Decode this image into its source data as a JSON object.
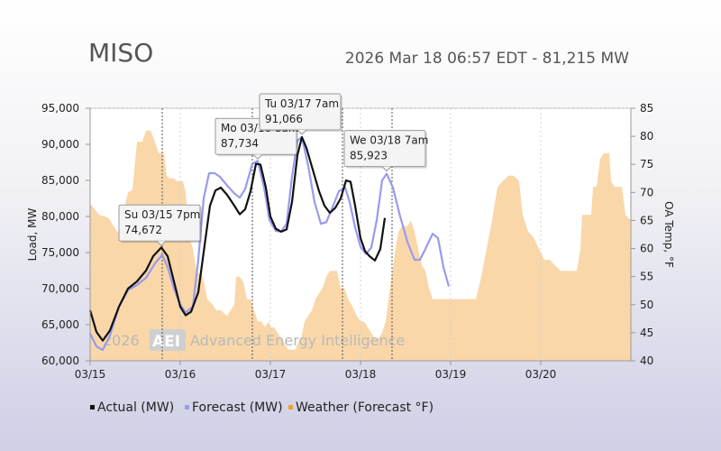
{
  "chart_data": {
    "type": "line",
    "title": "MISO",
    "subtitle": "2026 Mar 18 06:57 EDT - 81,215 MW",
    "ylabel": "Load, MW",
    "y2label": "OA Temp, °F",
    "ylim": [
      60000,
      95000
    ],
    "y2lim": [
      40,
      85
    ],
    "yticks": [
      "60,000",
      "65,000",
      "70,000",
      "75,000",
      "80,000",
      "85,000",
      "90,000",
      "95,000"
    ],
    "y2ticks": [
      "40",
      "45",
      "50",
      "55",
      "60",
      "65",
      "70",
      "75",
      "80",
      "85"
    ],
    "xlim": [
      0,
      6
    ],
    "xticks": [
      {
        "x": 0,
        "label": "03/15"
      },
      {
        "x": 1,
        "label": "03/16"
      },
      {
        "x": 2,
        "label": "03/17"
      },
      {
        "x": 3,
        "label": "03/18"
      },
      {
        "x": 4,
        "label": "03/19"
      },
      {
        "x": 5,
        "label": "03/20"
      }
    ],
    "watermark": {
      "copy": "2026",
      "logo": "AEI",
      "name": "Advanced Energy Intelligence"
    },
    "series": [
      {
        "name": "Actual (MW)",
        "color": "#111111",
        "axis": "left",
        "points": [
          [
            0,
            67000
          ],
          [
            0.07,
            64000
          ],
          [
            0.14,
            62800
          ],
          [
            0.22,
            64200
          ],
          [
            0.32,
            67500
          ],
          [
            0.42,
            70000
          ],
          [
            0.52,
            71000
          ],
          [
            0.62,
            72500
          ],
          [
            0.7,
            74500
          ],
          [
            0.79,
            75700
          ],
          [
            0.86,
            74500
          ],
          [
            0.93,
            71000
          ],
          [
            1.0,
            67500
          ],
          [
            1.06,
            66300
          ],
          [
            1.12,
            66800
          ],
          [
            1.2,
            69500
          ],
          [
            1.27,
            76000
          ],
          [
            1.33,
            81500
          ],
          [
            1.39,
            83600
          ],
          [
            1.45,
            84000
          ],
          [
            1.52,
            83000
          ],
          [
            1.6,
            81500
          ],
          [
            1.66,
            80300
          ],
          [
            1.72,
            81000
          ],
          [
            1.78,
            83500
          ],
          [
            1.84,
            87300
          ],
          [
            1.89,
            87200
          ],
          [
            1.95,
            84000
          ],
          [
            2.0,
            80000
          ],
          [
            2.06,
            78300
          ],
          [
            2.12,
            77900
          ],
          [
            2.18,
            78200
          ],
          [
            2.24,
            82000
          ],
          [
            2.3,
            88500
          ],
          [
            2.35,
            91000
          ],
          [
            2.4,
            89500
          ],
          [
            2.47,
            86500
          ],
          [
            2.54,
            83500
          ],
          [
            2.6,
            81500
          ],
          [
            2.66,
            80500
          ],
          [
            2.72,
            81200
          ],
          [
            2.78,
            82500
          ],
          [
            2.84,
            85000
          ],
          [
            2.89,
            84800
          ],
          [
            2.94,
            81500
          ],
          [
            3.0,
            77000
          ],
          [
            3.05,
            75200
          ],
          [
            3.1,
            74500
          ],
          [
            3.16,
            73900
          ],
          [
            3.22,
            75500
          ],
          [
            3.27,
            79800
          ]
        ]
      },
      {
        "name": "Forecast (MW)",
        "color": "#9a9aee",
        "axis": "left",
        "points": [
          [
            0,
            63800
          ],
          [
            0.07,
            62000
          ],
          [
            0.14,
            61500
          ],
          [
            0.22,
            63500
          ],
          [
            0.32,
            67500
          ],
          [
            0.42,
            69800
          ],
          [
            0.52,
            70500
          ],
          [
            0.62,
            71500
          ],
          [
            0.72,
            73500
          ],
          [
            0.8,
            74700
          ],
          [
            0.86,
            73000
          ],
          [
            0.93,
            70000
          ],
          [
            1.0,
            67800
          ],
          [
            1.06,
            66700
          ],
          [
            1.14,
            67500
          ],
          [
            1.2,
            74000
          ],
          [
            1.26,
            82500
          ],
          [
            1.32,
            86000
          ],
          [
            1.38,
            86000
          ],
          [
            1.44,
            85500
          ],
          [
            1.52,
            84300
          ],
          [
            1.6,
            83200
          ],
          [
            1.66,
            82600
          ],
          [
            1.72,
            83800
          ],
          [
            1.8,
            87300
          ],
          [
            1.86,
            87700
          ],
          [
            1.93,
            84000
          ],
          [
            1.99,
            79500
          ],
          [
            2.06,
            78000
          ],
          [
            2.12,
            77900
          ],
          [
            2.18,
            79000
          ],
          [
            2.24,
            85500
          ],
          [
            2.3,
            90500
          ],
          [
            2.35,
            91000
          ],
          [
            2.42,
            87000
          ],
          [
            2.49,
            82000
          ],
          [
            2.56,
            79000
          ],
          [
            2.62,
            79200
          ],
          [
            2.68,
            81000
          ],
          [
            2.76,
            83500
          ],
          [
            2.83,
            84000
          ],
          [
            2.88,
            82000
          ],
          [
            2.94,
            78500
          ],
          [
            3.0,
            75800
          ],
          [
            3.06,
            74800
          ],
          [
            3.12,
            75700
          ],
          [
            3.18,
            79500
          ],
          [
            3.24,
            85000
          ],
          [
            3.29,
            85923
          ],
          [
            3.36,
            84000
          ],
          [
            3.44,
            80000
          ],
          [
            3.52,
            76500
          ],
          [
            3.6,
            74000
          ],
          [
            3.66,
            74000
          ],
          [
            3.72,
            75500
          ],
          [
            3.8,
            77600
          ],
          [
            3.86,
            77000
          ],
          [
            3.92,
            73000
          ],
          [
            3.98,
            70300
          ]
        ]
      },
      {
        "name": "Weather (Forecast °F)",
        "color": "#f7c98c",
        "axis": "right",
        "style": "area",
        "points": [
          [
            0,
            68
          ],
          [
            0.1,
            66
          ],
          [
            0.2,
            65.5
          ],
          [
            0.3,
            63
          ],
          [
            0.36,
            63
          ],
          [
            0.38,
            67
          ],
          [
            0.42,
            70
          ],
          [
            0.47,
            70.5
          ],
          [
            0.52,
            79
          ],
          [
            0.58,
            79
          ],
          [
            0.62,
            81
          ],
          [
            0.67,
            81
          ],
          [
            0.72,
            79
          ],
          [
            0.76,
            77
          ],
          [
            0.82,
            77
          ],
          [
            0.85,
            73
          ],
          [
            0.88,
            72.5
          ],
          [
            0.93,
            72.5
          ],
          [
            0.96,
            72
          ],
          [
            1.03,
            72
          ],
          [
            1.06,
            70
          ],
          [
            1.1,
            62
          ],
          [
            1.14,
            60
          ],
          [
            1.18,
            56
          ],
          [
            1.25,
            55
          ],
          [
            1.3,
            51
          ],
          [
            1.36,
            50
          ],
          [
            1.4,
            49
          ],
          [
            1.45,
            49
          ],
          [
            1.52,
            48
          ],
          [
            1.56,
            49
          ],
          [
            1.6,
            50
          ],
          [
            1.62,
            55
          ],
          [
            1.66,
            55
          ],
          [
            1.7,
            54
          ],
          [
            1.74,
            51
          ],
          [
            1.78,
            51
          ],
          [
            1.82,
            49
          ],
          [
            1.86,
            47
          ],
          [
            1.9,
            47
          ],
          [
            1.94,
            46
          ],
          [
            1.98,
            47
          ],
          [
            2.0,
            46
          ],
          [
            2.04,
            46
          ],
          [
            2.08,
            45
          ],
          [
            2.12,
            44
          ],
          [
            2.16,
            43
          ],
          [
            2.2,
            42
          ],
          [
            2.24,
            42
          ],
          [
            2.28,
            42
          ],
          [
            2.3,
            43
          ],
          [
            2.34,
            44
          ],
          [
            2.38,
            47
          ],
          [
            2.42,
            48
          ],
          [
            2.46,
            49
          ],
          [
            2.5,
            51
          ],
          [
            2.54,
            52
          ],
          [
            2.58,
            53
          ],
          [
            2.62,
            55
          ],
          [
            2.66,
            56
          ],
          [
            2.7,
            56
          ],
          [
            2.74,
            56
          ],
          [
            2.78,
            53
          ],
          [
            2.82,
            53
          ],
          [
            2.86,
            51
          ],
          [
            2.9,
            50
          ],
          [
            2.96,
            48
          ],
          [
            3.0,
            47
          ],
          [
            3.04,
            47
          ],
          [
            3.08,
            46
          ],
          [
            3.12,
            45
          ],
          [
            3.16,
            44
          ],
          [
            3.2,
            44
          ],
          [
            3.24,
            45
          ],
          [
            3.28,
            47
          ],
          [
            3.32,
            52
          ],
          [
            3.38,
            59
          ],
          [
            3.42,
            63
          ],
          [
            3.46,
            64
          ],
          [
            3.52,
            64
          ],
          [
            3.56,
            65
          ],
          [
            3.6,
            63
          ],
          [
            3.64,
            60
          ],
          [
            3.68,
            57
          ],
          [
            3.72,
            56
          ],
          [
            3.76,
            53
          ],
          [
            3.8,
            51
          ],
          [
            3.86,
            51
          ],
          [
            3.92,
            51
          ],
          [
            4.0,
            51
          ],
          [
            4.1,
            51
          ],
          [
            4.2,
            51
          ],
          [
            4.28,
            51
          ],
          [
            4.34,
            55
          ],
          [
            4.4,
            60
          ],
          [
            4.46,
            65
          ],
          [
            4.52,
            71
          ],
          [
            4.58,
            72
          ],
          [
            4.64,
            73
          ],
          [
            4.7,
            73
          ],
          [
            4.76,
            72
          ],
          [
            4.8,
            66
          ],
          [
            4.86,
            63
          ],
          [
            4.92,
            62
          ],
          [
            4.98,
            60
          ],
          [
            5.04,
            58
          ],
          [
            5.1,
            58
          ],
          [
            5.16,
            57
          ],
          [
            5.22,
            56
          ],
          [
            5.28,
            56
          ],
          [
            5.34,
            56
          ],
          [
            5.4,
            56
          ],
          [
            5.44,
            60
          ],
          [
            5.46,
            66
          ],
          [
            5.52,
            66
          ],
          [
            5.56,
            66
          ],
          [
            5.58,
            71
          ],
          [
            5.62,
            71
          ],
          [
            5.66,
            76
          ],
          [
            5.7,
            77
          ],
          [
            5.76,
            77
          ],
          [
            5.78,
            72
          ],
          [
            5.82,
            71
          ],
          [
            5.86,
            71
          ],
          [
            5.9,
            71
          ],
          [
            5.94,
            66
          ],
          [
            6.0,
            65
          ]
        ]
      }
    ],
    "annotations": [
      {
        "label": "Su 03/15 7pm",
        "value": "74,672",
        "x": 0.79,
        "y": 75600,
        "series": "Actual (MW)"
      },
      {
        "label": "Mo 03/16 8am",
        "value": "87,734",
        "x": 1.86,
        "y": 87600,
        "series": "Forecast (MW)"
      },
      {
        "label": "Tu 03/17 7am",
        "value": "91,066",
        "x": 2.35,
        "y": 91000,
        "series": "Actual (MW)"
      },
      {
        "label": "We 03/18 7am",
        "value": "85,923",
        "x": 3.29,
        "y": 85923,
        "series": "Forecast (MW)",
        "highlight": true
      }
    ],
    "markers": [
      0.8,
      1.8,
      2.8,
      3.35
    ],
    "legend": {
      "placement": "bottom",
      "items": [
        "Actual (MW)",
        "Forecast (MW)",
        "Weather (Forecast °F)"
      ]
    },
    "grid": true
  }
}
